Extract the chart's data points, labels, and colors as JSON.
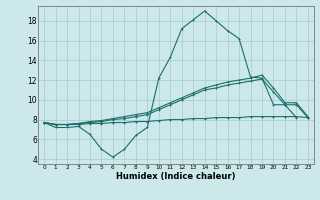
{
  "xlabel": "Humidex (Indice chaleur)",
  "ylabel": "",
  "xlim": [
    -0.5,
    23.5
  ],
  "ylim": [
    3.5,
    19.5
  ],
  "yticks": [
    4,
    6,
    8,
    10,
    12,
    14,
    16,
    18
  ],
  "xticks": [
    0,
    1,
    2,
    3,
    4,
    5,
    6,
    7,
    8,
    9,
    10,
    11,
    12,
    13,
    14,
    15,
    16,
    17,
    18,
    19,
    20,
    21,
    22,
    23
  ],
  "bg_color": "#cde8ea",
  "grid_color": "#aacfd3",
  "line_color": "#1a6e6a",
  "series": [
    {
      "x": [
        0,
        1,
        2,
        3,
        4,
        5,
        6,
        7,
        8,
        9,
        10,
        11,
        12,
        13,
        14,
        15,
        16,
        17,
        18,
        19,
        20,
        21,
        22
      ],
      "y": [
        7.7,
        7.2,
        7.2,
        7.3,
        6.5,
        5.0,
        4.2,
        5.0,
        6.4,
        7.2,
        12.2,
        14.3,
        17.2,
        18.1,
        19.0,
        18.0,
        17.0,
        16.2,
        12.3,
        12.2,
        9.5,
        9.5,
        8.2
      ]
    },
    {
      "x": [
        0,
        1,
        2,
        3,
        4,
        5,
        6,
        7,
        8,
        9,
        10,
        11,
        12,
        13,
        14,
        15,
        16,
        17,
        18,
        19,
        20,
        21,
        22,
        23
      ],
      "y": [
        7.7,
        7.5,
        7.5,
        7.6,
        7.7,
        7.8,
        8.0,
        8.1,
        8.3,
        8.5,
        9.0,
        9.5,
        10.0,
        10.5,
        11.0,
        11.2,
        11.5,
        11.7,
        11.9,
        12.1,
        10.8,
        9.5,
        9.5,
        8.2
      ]
    },
    {
      "x": [
        0,
        1,
        2,
        3,
        4,
        5,
        6,
        7,
        8,
        9,
        10,
        11,
        12,
        13,
        14,
        15,
        16,
        17,
        18,
        19,
        20,
        21,
        22,
        23
      ],
      "y": [
        7.7,
        7.5,
        7.5,
        7.5,
        7.6,
        7.6,
        7.7,
        7.7,
        7.8,
        7.8,
        7.9,
        8.0,
        8.0,
        8.1,
        8.1,
        8.2,
        8.2,
        8.2,
        8.3,
        8.3,
        8.3,
        8.3,
        8.3,
        8.2
      ]
    },
    {
      "x": [
        0,
        1,
        2,
        3,
        4,
        5,
        6,
        7,
        8,
        9,
        10,
        11,
        12,
        13,
        14,
        15,
        16,
        17,
        18,
        19,
        20,
        21,
        22,
        23
      ],
      "y": [
        7.7,
        7.5,
        7.5,
        7.6,
        7.8,
        7.9,
        8.1,
        8.3,
        8.5,
        8.7,
        9.2,
        9.7,
        10.2,
        10.7,
        11.2,
        11.5,
        11.8,
        12.0,
        12.2,
        12.5,
        11.2,
        9.7,
        9.7,
        8.3
      ]
    }
  ]
}
